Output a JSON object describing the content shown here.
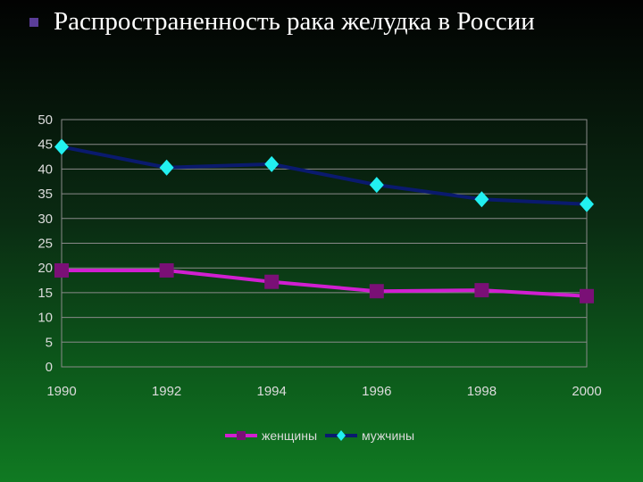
{
  "title": "Распространенность рака желудка в России",
  "chart_data": {
    "type": "line",
    "x": [
      "1990",
      "1992",
      "1994",
      "1996",
      "1998",
      "2000"
    ],
    "series": [
      {
        "name": "женщины",
        "values": [
          19.5,
          19.5,
          17.2,
          15.3,
          15.5,
          14.3
        ],
        "color": "#d11fd1",
        "marker_color": "#7a1076",
        "marker": "square"
      },
      {
        "name": "мужчины",
        "values": [
          44.5,
          40.3,
          41.0,
          36.8,
          33.9,
          32.9
        ],
        "color": "#0a1a6e",
        "marker_color": "#22f0f0",
        "marker": "diamond"
      }
    ],
    "ylim": [
      0,
      50
    ],
    "yticks": [
      0,
      5,
      10,
      15,
      20,
      25,
      30,
      35,
      40,
      45,
      50
    ],
    "grid": true,
    "legend": "bottom",
    "xlabel": "",
    "ylabel": ""
  }
}
